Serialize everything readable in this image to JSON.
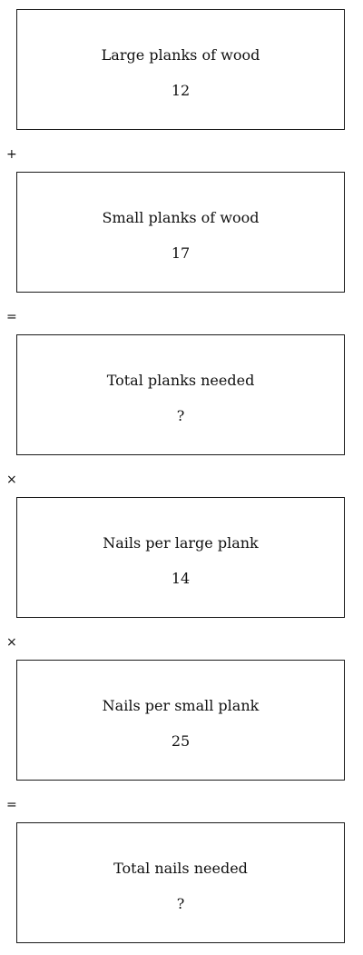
{
  "steps": [
    {
      "label": "Large planks of wood",
      "value": "12"
    },
    {
      "label": "Small planks of wood",
      "value": "17"
    },
    {
      "label": "Total planks needed",
      "value": "?"
    },
    {
      "label": "Nails per large plank",
      "value": "14"
    },
    {
      "label": "Nails per small plank",
      "value": "25"
    },
    {
      "label": "Total nails needed",
      "value": "?"
    }
  ],
  "operators": [
    "+",
    "=",
    "×",
    "×",
    "="
  ]
}
